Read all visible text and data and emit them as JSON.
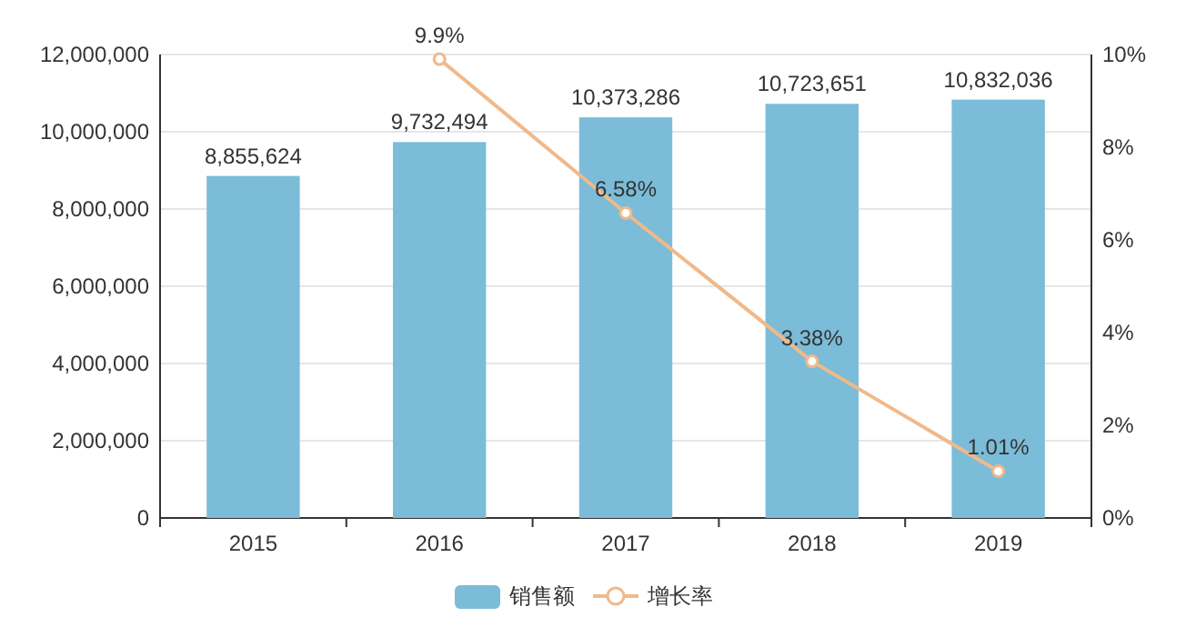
{
  "chart_data": {
    "type": "bar",
    "categories": [
      "2015",
      "2016",
      "2017",
      "2018",
      "2019"
    ],
    "series": [
      {
        "name": "销售额",
        "color": "#7bbcd8",
        "values": [
          8855624,
          9732494,
          10373286,
          10723651,
          10832036
        ],
        "value_labels": [
          "8,855,624",
          "9,732,494",
          "10,373,286",
          "10,723,651",
          "10,832,036"
        ]
      },
      {
        "name": "增长率",
        "type": "line",
        "axis": "y2",
        "color": "#f0b98a",
        "marker": "circle",
        "values": [
          null,
          9.9,
          6.58,
          3.38,
          1.01
        ],
        "value_labels": [
          null,
          "9.9%",
          "6.58%",
          "3.38%",
          "1.01%"
        ]
      }
    ],
    "ylim": [
      0,
      12000000
    ],
    "yticks": [
      {
        "value": 0,
        "label": "0"
      },
      {
        "value": 2000000,
        "label": "2,000,000"
      },
      {
        "value": 4000000,
        "label": "4,000,000"
      },
      {
        "value": 6000000,
        "label": "6,000,000"
      },
      {
        "value": 8000000,
        "label": "8,000,000"
      },
      {
        "value": 10000000,
        "label": "10,000,000"
      },
      {
        "value": 12000000,
        "label": "12,000,000"
      }
    ],
    "y2lim": [
      0,
      10
    ],
    "y2ticks": [
      {
        "value": 0,
        "label": "0%"
      },
      {
        "value": 2,
        "label": "2%"
      },
      {
        "value": 4,
        "label": "4%"
      },
      {
        "value": 6,
        "label": "6%"
      },
      {
        "value": 8,
        "label": "8%"
      },
      {
        "value": 10,
        "label": "10%"
      }
    ],
    "grid": "y",
    "legend": "bottom"
  }
}
